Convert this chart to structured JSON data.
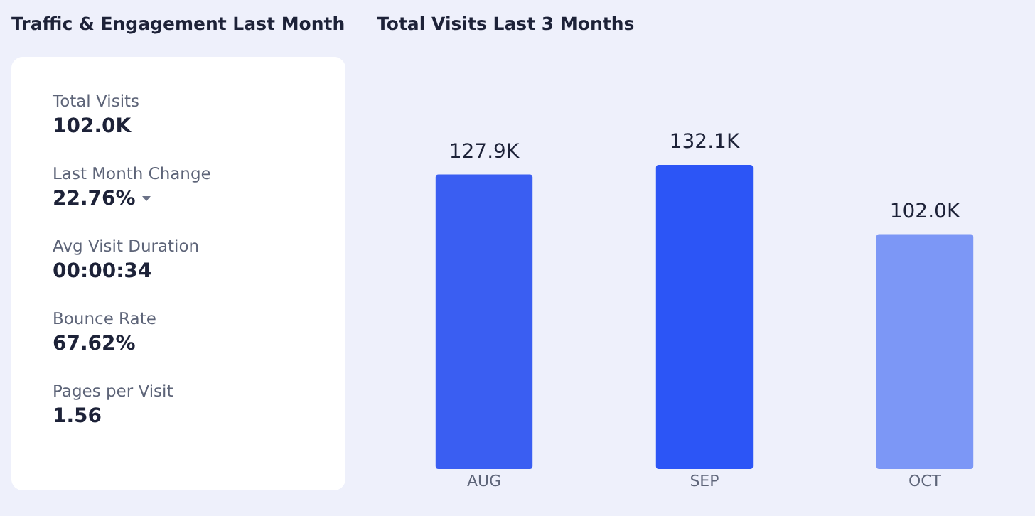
{
  "chart_data": [
    {
      "type": "other",
      "title": "Traffic & Engagement Last Month",
      "annotations": [
        "Total Visits",
        "102.0K",
        "Last Month Change",
        "22.76%",
        "Avg Visit Duration",
        "00:00:34",
        "Bounce Rate",
        "67.62%",
        "Pages per Visit",
        "1.56"
      ]
    },
    {
      "type": "bar",
      "title": "Total Visits Last 3 Months",
      "categories": [
        "AUG",
        "SEP",
        "OCT"
      ],
      "values": [
        127.9,
        132.1,
        102.0
      ],
      "value_labels": [
        "127.9K",
        "132.1K",
        "102.0K"
      ],
      "colors": [
        "#3a5ef2",
        "#2c55f6",
        "#7c97f6"
      ]
    }
  ]
}
